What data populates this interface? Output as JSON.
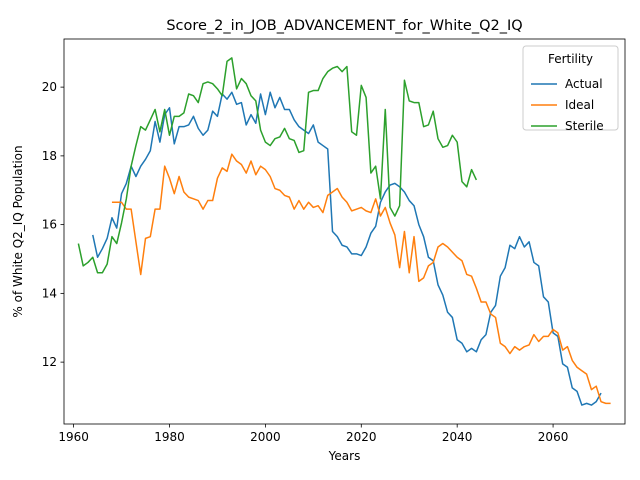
{
  "chart_data": {
    "type": "line",
    "title": "Score_2_in_JOB_ADVANCEMENT_for_White_Q2_IQ",
    "xlabel": "Years",
    "ylabel": "% of White Q2_IQ Population",
    "xlim": [
      1958,
      2075
    ],
    "ylim": [
      10.2,
      21.4
    ],
    "xticks": [
      1960,
      1980,
      2000,
      2020,
      2040,
      2060
    ],
    "yticks": [
      12,
      14,
      16,
      18,
      20
    ],
    "grid": false,
    "legend": {
      "title": "Fertility",
      "placement": "top-right"
    },
    "series": [
      {
        "name": "Actual",
        "color": "#1f77b4",
        "start_year": 1964,
        "values": [
          15.7,
          15.05,
          15.3,
          15.6,
          16.2,
          15.9,
          16.9,
          17.2,
          17.7,
          17.4,
          17.7,
          17.9,
          18.15,
          19.0,
          18.4,
          19.2,
          19.4,
          18.35,
          18.85,
          18.85,
          18.9,
          19.15,
          18.8,
          18.6,
          18.75,
          19.3,
          19.15,
          19.8,
          19.65,
          19.85,
          19.5,
          19.55,
          18.9,
          19.2,
          18.95,
          19.8,
          19.2,
          19.85,
          19.4,
          19.7,
          19.35,
          19.35,
          19.05,
          18.85,
          18.75,
          18.65,
          18.9,
          18.4,
          18.3,
          18.2,
          15.8,
          15.65,
          15.4,
          15.35,
          15.15,
          15.15,
          15.1,
          15.35,
          15.75,
          15.95,
          16.65,
          16.95,
          17.15,
          17.2,
          17.1,
          16.95,
          16.7,
          16.55,
          16.0,
          15.65,
          15.05,
          14.95,
          14.25,
          13.95,
          13.45,
          13.3,
          12.65,
          12.55,
          12.3,
          12.4,
          12.3,
          12.65,
          12.8,
          13.45,
          13.65,
          14.5,
          14.75,
          15.4,
          15.3,
          15.65,
          15.35,
          15.5,
          14.9,
          14.8,
          13.9,
          13.75,
          12.85,
          12.75,
          11.95,
          11.85,
          11.25,
          11.15,
          10.75,
          10.8,
          10.75,
          10.85,
          11.1
        ]
      },
      {
        "name": "Ideal",
        "color": "#ff7f0e",
        "start_year": 1968,
        "values": [
          16.65,
          16.65,
          16.65,
          16.45,
          16.45,
          15.5,
          14.55,
          15.6,
          15.65,
          16.45,
          16.45,
          17.7,
          17.35,
          16.9,
          17.4,
          16.95,
          16.8,
          16.75,
          16.7,
          16.45,
          16.7,
          16.7,
          17.35,
          17.65,
          17.55,
          18.05,
          17.85,
          17.75,
          17.5,
          17.85,
          17.45,
          17.7,
          17.6,
          17.4,
          17.05,
          17.0,
          16.85,
          16.8,
          16.45,
          16.7,
          16.45,
          16.65,
          16.5,
          16.55,
          16.35,
          16.85,
          16.95,
          17.05,
          16.8,
          16.65,
          16.4,
          16.45,
          16.5,
          16.4,
          16.35,
          16.75,
          16.25,
          16.5,
          16.05,
          15.7,
          14.75,
          15.8,
          14.6,
          15.65,
          14.35,
          14.45,
          14.8,
          14.9,
          15.35,
          15.45,
          15.35,
          15.2,
          15.05,
          14.95,
          14.55,
          14.5,
          14.15,
          13.75,
          13.75,
          13.4,
          13.3,
          12.55,
          12.45,
          12.25,
          12.45,
          12.35,
          12.45,
          12.5,
          12.8,
          12.6,
          12.75,
          12.75,
          12.95,
          12.85,
          12.35,
          12.45,
          12.05,
          11.85,
          11.75,
          11.65,
          11.2,
          11.3,
          10.85,
          10.8,
          10.8
        ]
      },
      {
        "name": "Sterile",
        "color": "#2ca02c",
        "start_year": 1961,
        "values": [
          15.45,
          14.8,
          14.9,
          15.05,
          14.6,
          14.6,
          14.85,
          15.65,
          15.45,
          16.05,
          16.75,
          17.7,
          18.3,
          18.85,
          18.75,
          19.05,
          19.35,
          18.7,
          19.35,
          18.6,
          19.15,
          19.15,
          19.25,
          19.8,
          19.75,
          19.55,
          20.1,
          20.15,
          20.1,
          19.95,
          19.75,
          20.75,
          20.85,
          19.95,
          20.25,
          20.1,
          19.75,
          19.6,
          18.75,
          18.4,
          18.3,
          18.5,
          18.55,
          18.8,
          18.5,
          18.45,
          18.1,
          18.15,
          19.85,
          19.9,
          19.9,
          20.25,
          20.45,
          20.55,
          20.6,
          20.45,
          20.6,
          18.7,
          18.6,
          20.05,
          19.7,
          17.5,
          17.7,
          16.75,
          19.35,
          16.5,
          16.25,
          16.55,
          20.2,
          19.6,
          19.55,
          19.55,
          18.85,
          18.9,
          19.3,
          18.5,
          18.25,
          18.3,
          18.6,
          18.4,
          17.25,
          17.1,
          17.6,
          17.3
        ]
      }
    ]
  }
}
